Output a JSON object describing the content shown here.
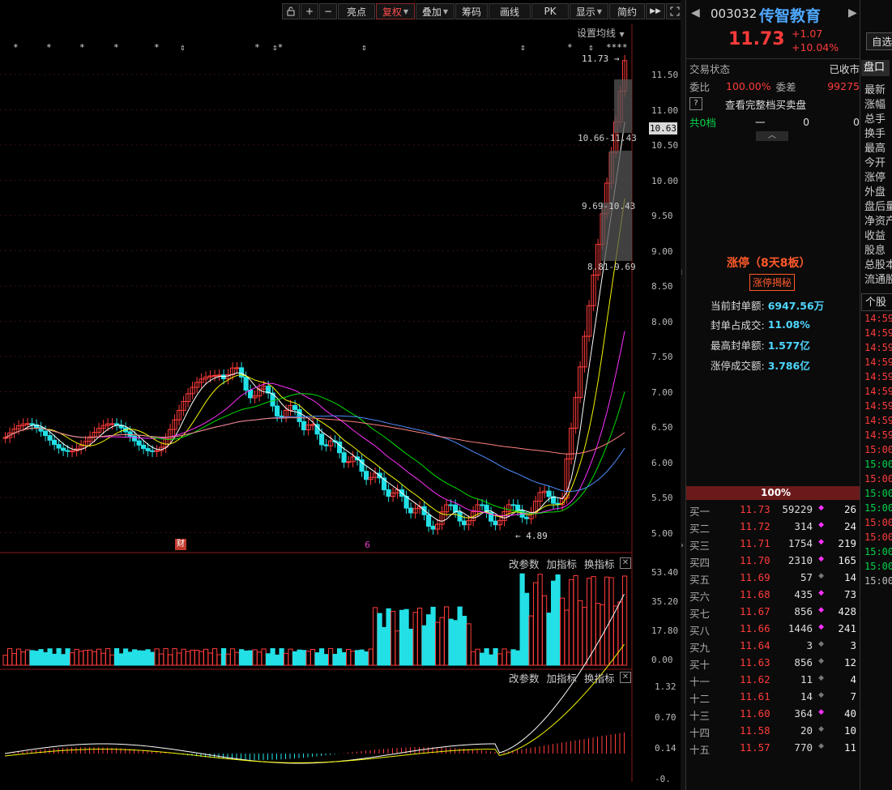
{
  "toolbar": {
    "lock_icon": "lock-icon",
    "plus": "+",
    "minus": "−",
    "highlight": "亮点",
    "rights": "复权",
    "overlay": "叠加",
    "chips": "筹码",
    "draw": "画线",
    "pk": "PK",
    "display": "显示",
    "simple": "简约",
    "forward": "▶▶",
    "fullscreen_icon": "fullscreen-icon"
  },
  "ma_setting": "设置均线",
  "price_axis": [
    "11.50",
    "11.00",
    "10.50",
    "10.00",
    "9.50",
    "9.00",
    "8.50",
    "8.00",
    "7.50",
    "7.00",
    "6.50",
    "6.00",
    "5.50",
    "5.00"
  ],
  "current_price_tag": "10.63",
  "annotations": {
    "high": "11.73",
    "low": "4.89",
    "range1": "10.66-11.43",
    "range2": "9.69-10.43",
    "range3": "8.81-9.69",
    "finance_mark": "财",
    "special_mark": "6"
  },
  "markers_row": [
    "*",
    "*",
    "*",
    "*",
    "*",
    "⇕",
    "*",
    "⇕*",
    "⇕",
    "⇕",
    "*",
    "⇕",
    "****"
  ],
  "volume_panel": {
    "edit": "改参数",
    "add": "加指标",
    "switch": "换指标",
    "axis": [
      "53.40",
      "35.20",
      "17.80",
      "0.00"
    ]
  },
  "macd_panel": {
    "edit": "改参数",
    "add": "加指标",
    "switch": "换指标",
    "axis": [
      "1.32",
      "0.70",
      "0.14",
      "-0."
    ]
  },
  "stock": {
    "code": "003032",
    "name": "传智教育",
    "price": "11.73",
    "change": "+1.07",
    "change_pct": "+10.04%",
    "add_watch": "自选"
  },
  "status": {
    "trade_state_label": "交易状态",
    "trade_state_value": "已收市",
    "ratio_label": "委比",
    "ratio_value": "100.00%",
    "diff_label": "委差",
    "diff_value": "99275",
    "help_icon": "?",
    "full_book": "查看完整档买卖盘",
    "levels_label": "共0档",
    "levels_dash": "一",
    "levels_v1": "0",
    "levels_v2": "0"
  },
  "limit_up": {
    "title": "涨停（8天8板）",
    "reveal": "涨停揭秘",
    "items": [
      {
        "label": "当前封单额:",
        "value": "6947.56万"
      },
      {
        "label": "封单占成交:",
        "value": "11.08%"
      },
      {
        "label": "最高封单额:",
        "value": "1.577亿"
      },
      {
        "label": "涨停成交额:",
        "value": "3.786亿"
      }
    ]
  },
  "bid_bar": "100%",
  "bids": [
    {
      "label": "买一",
      "price": "11.73",
      "vol": "59229",
      "n": "26",
      "mark": "magenta"
    },
    {
      "label": "买二",
      "price": "11.72",
      "vol": "314",
      "n": "24",
      "mark": "magenta"
    },
    {
      "label": "买三",
      "price": "11.71",
      "vol": "1754",
      "n": "219",
      "mark": "magenta"
    },
    {
      "label": "买四",
      "price": "11.70",
      "vol": "2310",
      "n": "165",
      "mark": "magenta"
    },
    {
      "label": "买五",
      "price": "11.69",
      "vol": "57",
      "n": "14",
      "mark": "gray"
    },
    {
      "label": "买六",
      "price": "11.68",
      "vol": "435",
      "n": "73",
      "mark": "magenta"
    },
    {
      "label": "买七",
      "price": "11.67",
      "vol": "856",
      "n": "428",
      "mark": "magenta"
    },
    {
      "label": "买八",
      "price": "11.66",
      "vol": "1446",
      "n": "241",
      "mark": "magenta"
    },
    {
      "label": "买九",
      "price": "11.64",
      "vol": "3",
      "n": "3",
      "mark": "gray"
    },
    {
      "label": "买十",
      "price": "11.63",
      "vol": "856",
      "n": "12",
      "mark": "gray"
    },
    {
      "label": "十一",
      "price": "11.62",
      "vol": "11",
      "n": "4",
      "mark": "gray"
    },
    {
      "label": "十二",
      "price": "11.61",
      "vol": "14",
      "n": "7",
      "mark": "gray"
    },
    {
      "label": "十三",
      "price": "11.60",
      "vol": "364",
      "n": "40",
      "mark": "magenta"
    },
    {
      "label": "十四",
      "price": "11.58",
      "vol": "20",
      "n": "10",
      "mark": "gray"
    },
    {
      "label": "十五",
      "price": "11.57",
      "vol": "770",
      "n": "11",
      "mark": "gray"
    }
  ],
  "side_tabs": {
    "panel": "盘口",
    "labels": [
      "最新",
      "涨幅",
      "总手",
      "换手",
      "最高",
      "今开",
      "涨停",
      "外盘",
      "盘后量",
      "净资产",
      "收益",
      "股息",
      "总股本",
      "流通股"
    ],
    "stock_tab": "个股"
  },
  "ticks": [
    "14:59",
    "14:59",
    "14:59",
    "14:59",
    "14:59",
    "14:59",
    "14:59",
    "14:59",
    "14:59",
    "15:00",
    "15:00",
    "15:00",
    "15:00",
    "15:00",
    "15:00",
    "15:00",
    "15:00",
    "15:00",
    "15:00"
  ],
  "tick_colors": [
    "red",
    "red",
    "red",
    "red",
    "red",
    "red",
    "red",
    "red",
    "red",
    "red",
    "green",
    "red",
    "green",
    "green",
    "red",
    "red",
    "green",
    "green",
    "white"
  ],
  "colors": {
    "up": "#ff3b3b",
    "down": "#22e0e6",
    "bg": "#000000",
    "accent": "#ffb400"
  }
}
